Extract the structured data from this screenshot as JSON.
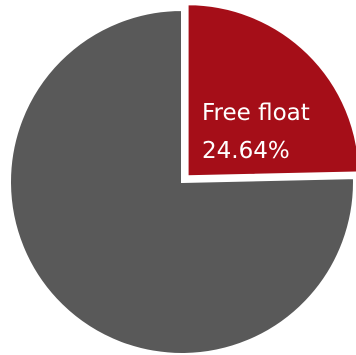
{
  "chart_data": {
    "type": "pie",
    "slices": [
      {
        "label": "Free float",
        "value": 24.64,
        "value_label": "24.64%",
        "color": "#a50e18",
        "exploded": true
      },
      {
        "label": "",
        "value": 75.36,
        "value_label": "",
        "color": "#595959",
        "exploded": false
      }
    ],
    "start_angle": "12 o'clock",
    "direction": "clockwise",
    "legend": "none"
  }
}
